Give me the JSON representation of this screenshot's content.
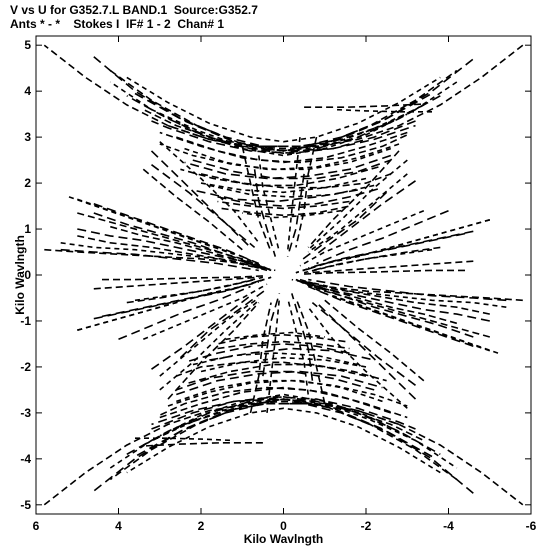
{
  "chart_data": {
    "type": "scatter",
    "title": "V vs U for G352.7.L BAND.1  Source:G352.7",
    "subtitle": "Ants * - *    Stokes I  IF# 1 - 2  Chan# 1",
    "xlabel": "Kilo Wavlngth",
    "ylabel": "Kilo Wavlngth",
    "xlim": [
      6,
      -6
    ],
    "ylim": [
      -5.2,
      5.2
    ],
    "x_ticks": [
      6,
      4,
      2,
      0,
      -2,
      -4,
      -6
    ],
    "y_ticks": [
      5,
      4,
      3,
      2,
      1,
      0,
      -1,
      -2,
      -3,
      -4,
      -5
    ],
    "grid": false,
    "marker": "dash",
    "color": "#000000",
    "tracks": [
      {
        "u": [
          4.6,
          3.6,
          2.4,
          1.2,
          0.0,
          -1.2,
          -2.4,
          -3.6,
          -4.6
        ],
        "v": [
          4.75,
          4.0,
          3.35,
          2.9,
          2.7,
          2.9,
          3.35,
          4.0,
          4.7
        ]
      },
      {
        "u": [
          4.2,
          3.2,
          2.1,
          1.0,
          0.0,
          -1.0,
          -2.1,
          -3.2,
          -4.2
        ],
        "v": [
          4.45,
          3.8,
          3.25,
          2.85,
          2.7,
          2.85,
          3.25,
          3.8,
          4.45
        ]
      },
      {
        "u": [
          3.8,
          2.8,
          1.8,
          0.8,
          0.0,
          -0.8,
          -1.8,
          -2.8,
          -3.8
        ],
        "v": [
          4.3,
          3.75,
          3.3,
          3.0,
          2.9,
          3.0,
          3.3,
          3.75,
          4.3
        ]
      },
      {
        "u": [
          3.6,
          2.5,
          1.4,
          0.5,
          -0.5,
          -1.4,
          -2.5,
          -3.6
        ],
        "v": [
          3.95,
          3.4,
          3.0,
          2.8,
          2.8,
          3.0,
          3.4,
          3.95
        ]
      },
      {
        "u": [
          -0.5,
          -1.5,
          -2.5,
          -3.4
        ],
        "v": [
          3.65,
          3.65,
          3.68,
          3.72
        ]
      },
      {
        "u": [
          3.0,
          2.0,
          1.0,
          0.0,
          -1.0,
          -2.0,
          -3.0
        ],
        "v": [
          3.5,
          3.05,
          2.75,
          2.6,
          2.75,
          3.05,
          3.5
        ]
      },
      {
        "u": [
          2.8,
          1.8,
          0.8,
          -0.2,
          -1.2,
          -2.2,
          -3.2
        ],
        "v": [
          3.25,
          2.95,
          2.75,
          2.7,
          2.75,
          2.95,
          3.25
        ]
      },
      {
        "u": [
          2.6,
          1.6,
          0.6,
          -0.4,
          -1.4,
          -2.4,
          -3.0
        ],
        "v": [
          3.0,
          2.7,
          2.5,
          2.45,
          2.55,
          2.8,
          3.05
        ]
      },
      {
        "u": [
          2.4,
          1.4,
          0.4,
          -0.6,
          -1.6,
          -2.6
        ],
        "v": [
          2.75,
          2.45,
          2.3,
          2.3,
          2.45,
          2.75
        ]
      },
      {
        "u": [
          2.2,
          1.2,
          0.2,
          -0.8,
          -1.8,
          -2.6
        ],
        "v": [
          2.5,
          2.25,
          2.1,
          2.1,
          2.25,
          2.5
        ]
      },
      {
        "u": [
          2.0,
          1.0,
          0.0,
          -1.0,
          -2.0,
          -2.6
        ],
        "v": [
          2.2,
          2.0,
          1.9,
          1.9,
          2.0,
          2.2
        ]
      },
      {
        "u": [
          1.8,
          0.8,
          -0.2,
          -1.2,
          -2.2
        ],
        "v": [
          1.95,
          1.75,
          1.7,
          1.75,
          1.95
        ]
      },
      {
        "u": [
          1.6,
          0.8,
          0.0,
          -0.8,
          -1.6,
          -2.4
        ],
        "v": [
          1.7,
          1.55,
          1.5,
          1.55,
          1.7,
          1.9
        ]
      },
      {
        "u": [
          1.5,
          0.7,
          0.0,
          -0.8,
          -1.6
        ],
        "v": [
          1.45,
          1.35,
          1.3,
          1.35,
          1.5
        ]
      },
      {
        "u": [
          3.0,
          2.0,
          1.2,
          0.6
        ],
        "v": [
          2.9,
          2.1,
          1.4,
          0.7
        ]
      },
      {
        "u": [
          3.2,
          2.3,
          1.5,
          0.7
        ],
        "v": [
          2.4,
          1.8,
          1.2,
          0.6
        ]
      },
      {
        "u": [
          -2.8,
          -2.0,
          -1.2,
          -0.6
        ],
        "v": [
          2.7,
          1.9,
          1.2,
          0.6
        ]
      },
      {
        "u": [
          -3.0,
          -2.2,
          -1.4,
          -0.6
        ],
        "v": [
          2.2,
          1.6,
          1.0,
          0.5
        ]
      },
      {
        "u": [
          -2.5,
          -1.8,
          -1.0,
          -0.4
        ],
        "v": [
          1.8,
          1.2,
          0.7,
          0.3
        ]
      },
      {
        "u": [
          1.0,
          0.8,
          0.6,
          0.3
        ],
        "v": [
          2.8,
          2.0,
          1.2,
          0.5
        ]
      },
      {
        "u": [
          -0.4,
          -0.3,
          -0.2,
          -0.1
        ],
        "v": [
          3.0,
          2.2,
          1.4,
          0.5
        ]
      },
      {
        "u": [
          0.7,
          0.6,
          0.4,
          0.2
        ],
        "v": [
          2.3,
          1.6,
          1.0,
          0.4
        ]
      },
      {
        "u": [
          5.8,
          5.0,
          4.0,
          3.0,
          2.0,
          1.0,
          0.2
        ],
        "v": [
          0.55,
          0.5,
          0.45,
          0.4,
          0.35,
          0.25,
          0.1
        ]
      },
      {
        "u": [
          5.4,
          4.6,
          3.6,
          2.6,
          1.6,
          0.6
        ],
        "v": [
          0.7,
          0.6,
          0.55,
          0.45,
          0.35,
          0.15
        ]
      },
      {
        "u": [
          5.0,
          4.2,
          3.4,
          2.6,
          1.8,
          1.0,
          0.4
        ],
        "v": [
          1.0,
          0.85,
          0.75,
          0.6,
          0.45,
          0.3,
          0.1
        ]
      },
      {
        "u": [
          5.0,
          4.2,
          3.4,
          2.6,
          1.8,
          1.0,
          0.3
        ],
        "v": [
          1.35,
          1.15,
          0.95,
          0.75,
          0.55,
          0.35,
          0.1
        ]
      },
      {
        "u": [
          5.2,
          4.4,
          3.6,
          2.8,
          2.0,
          1.2
        ],
        "v": [
          1.7,
          1.45,
          1.2,
          0.95,
          0.7,
          0.45
        ]
      },
      {
        "u": [
          4.6,
          3.8,
          3.0,
          2.2,
          1.4,
          0.6
        ],
        "v": [
          1.55,
          1.3,
          1.05,
          0.8,
          0.55,
          0.25
        ]
      },
      {
        "u": [
          4.4,
          3.6,
          2.8,
          2.0,
          1.2,
          0.5
        ],
        "v": [
          -0.1,
          -0.1,
          -0.08,
          -0.06,
          -0.05,
          -0.02
        ]
      },
      {
        "u": [
          5.0,
          4.2,
          3.4,
          2.6,
          1.8,
          1.0,
          0.3
        ],
        "v": [
          -1.2,
          -1.0,
          -0.8,
          -0.6,
          -0.4,
          -0.25,
          -0.05
        ]
      },
      {
        "u": [
          4.4,
          3.6,
          2.8,
          2.0,
          1.2,
          0.5
        ],
        "v": [
          -0.9,
          -0.75,
          -0.6,
          -0.45,
          -0.3,
          -0.1
        ]
      },
      {
        "u": [
          3.8,
          3.0,
          2.2,
          1.4,
          0.7
        ],
        "v": [
          -0.6,
          -0.5,
          -0.38,
          -0.25,
          -0.1
        ]
      },
      {
        "u": [
          3.4,
          2.6,
          1.8,
          1.0,
          0.4
        ],
        "v": [
          -1.4,
          -1.1,
          -0.8,
          -0.5,
          -0.2
        ]
      },
      {
        "u": [
          -5.4,
          -4.6,
          -3.6,
          -2.6,
          -1.6,
          -0.6
        ],
        "v": [
          -0.55,
          -0.5,
          -0.45,
          -0.35,
          -0.25,
          -0.1
        ]
      },
      {
        "u": [
          -5.0,
          -4.2,
          -3.2,
          -2.2,
          -1.2,
          -0.4
        ],
        "v": [
          -0.85,
          -0.7,
          -0.6,
          -0.45,
          -0.3,
          -0.1
        ]
      },
      {
        "u": [
          -5.0,
          -4.2,
          -3.4,
          -2.6,
          -1.8,
          -1.0,
          -0.3
        ],
        "v": [
          -1.65,
          -1.4,
          -1.15,
          -0.9,
          -0.65,
          -0.4,
          -0.1
        ]
      },
      {
        "u": [
          -4.6,
          -3.8,
          -3.0,
          -2.2,
          -1.4,
          -0.6
        ],
        "v": [
          -1.35,
          -1.1,
          -0.9,
          -0.7,
          -0.45,
          -0.2
        ]
      },
      {
        "u": [
          -4.2,
          -3.4,
          -2.6,
          -1.8,
          -1.0,
          -0.3
        ],
        "v": [
          -1.05,
          -0.85,
          -0.7,
          -0.5,
          -0.3,
          -0.1
        ]
      },
      {
        "u": [
          -5.0,
          -4.2,
          -3.4,
          -2.6,
          -1.8,
          -1.0,
          -0.3
        ],
        "v": [
          1.2,
          1.0,
          0.8,
          0.6,
          0.4,
          0.25,
          0.05
        ]
      },
      {
        "u": [
          -4.6,
          -3.8,
          -3.0,
          -2.2,
          -1.4,
          -0.6
        ],
        "v": [
          0.95,
          0.8,
          0.65,
          0.5,
          0.35,
          0.15
        ]
      },
      {
        "u": [
          -4.6,
          -3.8,
          -3.0,
          -2.2,
          -1.4,
          -0.6
        ],
        "v": [
          0.3,
          0.25,
          0.2,
          0.15,
          0.1,
          0.05
        ]
      },
      {
        "u": [
          -3.6,
          -2.8,
          -2.0,
          -1.2,
          -0.5
        ],
        "v": [
          0.55,
          0.45,
          0.35,
          0.2,
          0.05
        ]
      },
      {
        "u": [
          -4.0,
          -3.2,
          -2.4,
          -1.6,
          -0.8
        ],
        "v": [
          1.4,
          1.1,
          0.8,
          0.55,
          0.25
        ]
      },
      {
        "u": [
          5.8,
          4.8,
          3.8,
          2.8,
          1.8,
          0.8,
          0.0,
          -0.8,
          -1.8,
          -2.8,
          -3.8,
          -4.8,
          -5.8
        ],
        "v": [
          -5.0,
          -4.3,
          -3.7,
          -3.25,
          -2.95,
          -2.8,
          -2.75,
          -2.8,
          -2.95,
          -3.25,
          -3.7,
          -4.3,
          -5.0
        ]
      },
      {
        "u": [
          4.2,
          3.2,
          2.1,
          1.0,
          0.0,
          -1.0,
          -2.1,
          -3.2,
          -4.2
        ],
        "v": [
          -4.2,
          -3.6,
          -3.15,
          -2.8,
          -2.7,
          -2.8,
          -3.15,
          -3.6,
          -4.2
        ]
      },
      {
        "u": [
          3.8,
          2.8,
          1.8,
          0.8,
          0.0,
          -0.8,
          -1.8,
          -2.8,
          -3.8
        ],
        "v": [
          -3.9,
          -3.4,
          -3.0,
          -2.75,
          -2.65,
          -2.75,
          -3.0,
          -3.4,
          -3.9
        ]
      },
      {
        "u": [
          3.4,
          2.4,
          1.4,
          0.4,
          -0.6,
          -1.6,
          -2.6,
          -3.4
        ],
        "v": [
          -3.7,
          -3.25,
          -2.95,
          -2.8,
          -2.8,
          -2.95,
          -3.25,
          -3.6
        ]
      },
      {
        "u": [
          3.6,
          2.8,
          2.0,
          1.2
        ],
        "v": [
          -3.55,
          -3.55,
          -3.57,
          -3.6
        ]
      },
      {
        "u": [
          3.2,
          2.2,
          1.2,
          0.2,
          -0.8,
          -1.8,
          -2.8,
          -3.2
        ],
        "v": [
          -3.35,
          -3.0,
          -2.75,
          -2.65,
          -2.7,
          -2.9,
          -3.2,
          -3.35
        ]
      },
      {
        "u": [
          3.0,
          2.0,
          1.0,
          0.0,
          -1.0,
          -2.0,
          -3.0
        ],
        "v": [
          -3.1,
          -2.8,
          -2.55,
          -2.45,
          -2.55,
          -2.8,
          -3.1
        ]
      },
      {
        "u": [
          2.8,
          1.8,
          0.8,
          -0.2,
          -1.2,
          -2.2,
          -3.0
        ],
        "v": [
          -2.85,
          -2.55,
          -2.35,
          -2.3,
          -2.4,
          -2.6,
          -2.85
        ]
      },
      {
        "u": [
          2.6,
          1.6,
          0.6,
          -0.4,
          -1.4,
          -2.4
        ],
        "v": [
          -2.6,
          -2.3,
          -2.15,
          -2.1,
          -2.2,
          -2.45
        ]
      },
      {
        "u": [
          2.3,
          1.3,
          0.3,
          -0.7,
          -1.7,
          -2.5
        ],
        "v": [
          -2.35,
          -2.1,
          -1.95,
          -1.95,
          -2.1,
          -2.3
        ]
      },
      {
        "u": [
          2.0,
          1.0,
          0.0,
          -1.0,
          -2.0
        ],
        "v": [
          -2.1,
          -1.9,
          -1.8,
          -1.85,
          -2.0
        ]
      },
      {
        "u": [
          1.8,
          0.8,
          -0.2,
          -1.2,
          -2.2
        ],
        "v": [
          -1.85,
          -1.7,
          -1.6,
          -1.65,
          -1.85
        ]
      },
      {
        "u": [
          1.6,
          0.8,
          0.0,
          -0.8,
          -1.6
        ],
        "v": [
          -1.6,
          -1.5,
          -1.45,
          -1.5,
          -1.6
        ]
      },
      {
        "u": [
          1.4,
          0.6,
          -0.2,
          -1.0
        ],
        "v": [
          -1.4,
          -1.3,
          -1.25,
          -1.35
        ]
      },
      {
        "u": [
          -3.2,
          -2.4,
          -1.6,
          -0.8
        ],
        "v": [
          -2.7,
          -2.0,
          -1.3,
          -0.6
        ]
      },
      {
        "u": [
          -3.4,
          -2.6,
          -1.8,
          -1.0
        ],
        "v": [
          -2.3,
          -1.7,
          -1.15,
          -0.55
        ]
      },
      {
        "u": [
          3.0,
          2.2,
          1.4,
          0.6
        ],
        "v": [
          -2.5,
          -1.9,
          -1.2,
          -0.55
        ]
      },
      {
        "u": [
          3.2,
          2.4,
          1.6,
          0.8
        ],
        "v": [
          -2.05,
          -1.55,
          -1.0,
          -0.45
        ]
      },
      {
        "u": [
          0.8,
          0.6,
          0.5,
          0.3
        ],
        "v": [
          -3.0,
          -2.2,
          -1.4,
          -0.6
        ]
      },
      {
        "u": [
          -0.6,
          -0.5,
          -0.3,
          -0.1
        ],
        "v": [
          -2.6,
          -1.9,
          -1.2,
          -0.5
        ]
      },
      {
        "u": [
          0.5,
          0.4,
          0.3,
          0.1
        ],
        "v": [
          -2.2,
          -1.6,
          -1.0,
          -0.4
        ]
      }
    ]
  }
}
